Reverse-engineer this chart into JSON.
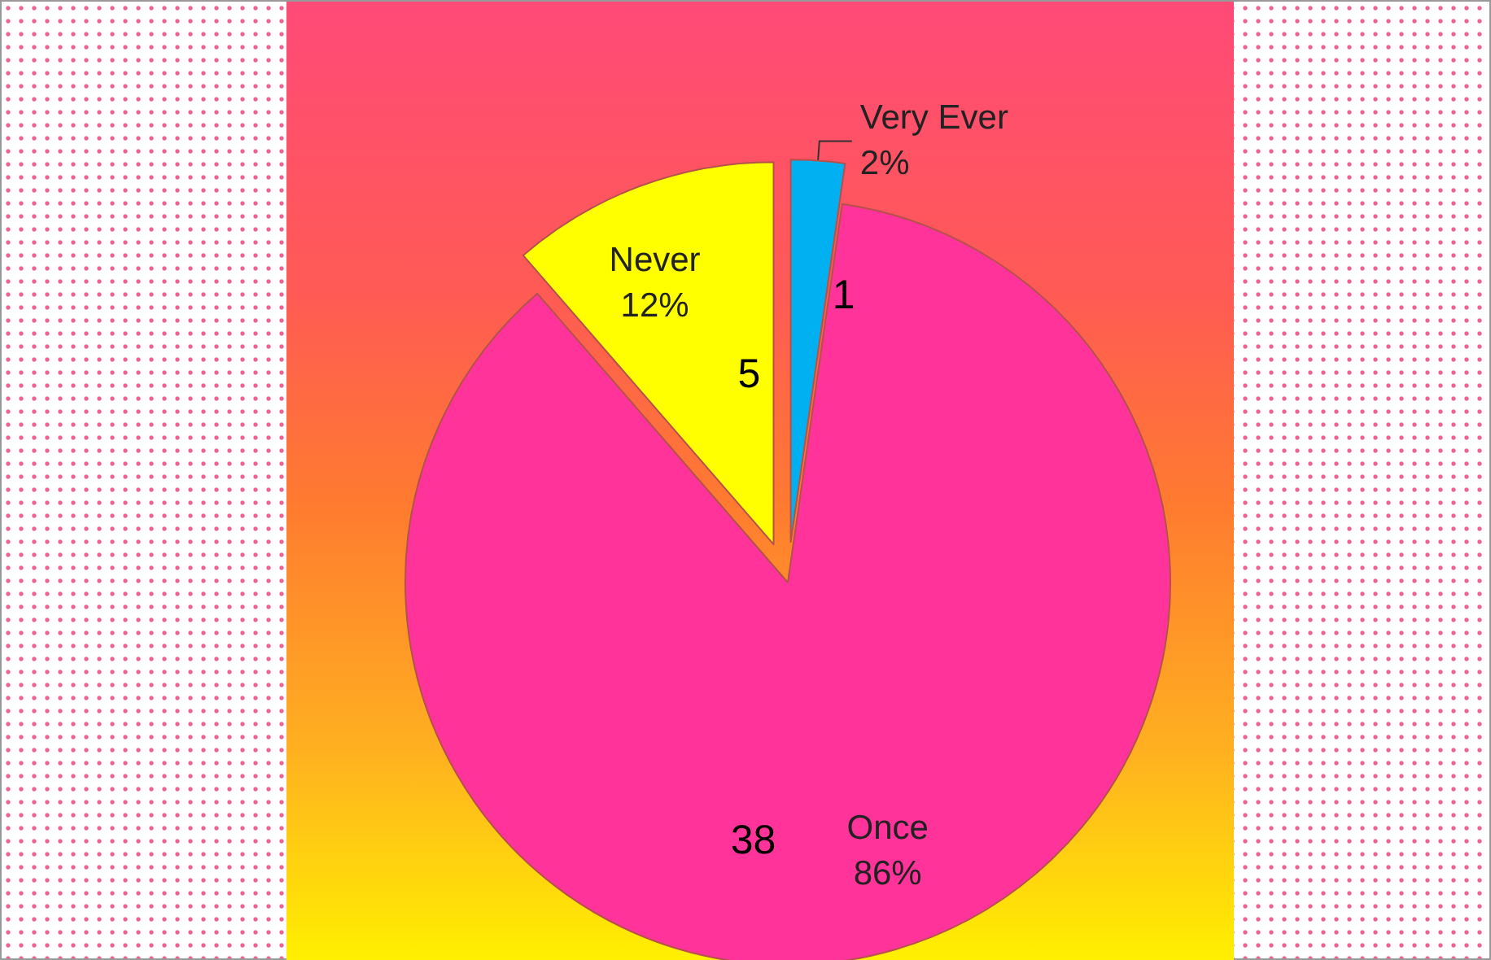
{
  "chart_data": {
    "type": "pie",
    "categories": [
      "Very Ever",
      "Once",
      "Never"
    ],
    "values": [
      1,
      38,
      5
    ],
    "colors": [
      "#00b0f0",
      "#ff3399",
      "#ffff00"
    ],
    "annotations": [
      "2%",
      "86%",
      "12%"
    ],
    "data_labels": true
  }
}
